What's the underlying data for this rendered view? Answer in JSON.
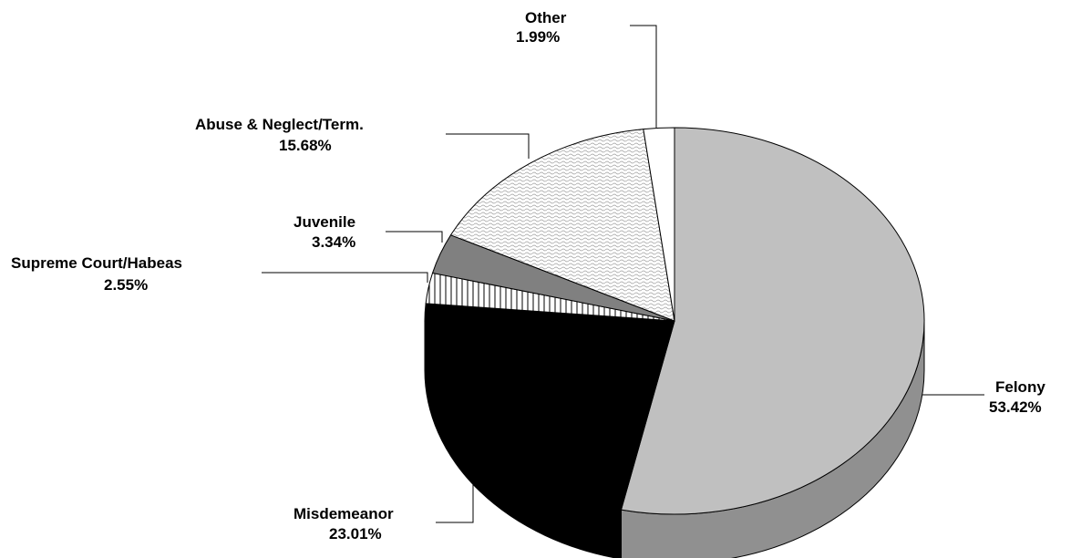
{
  "chart_data": {
    "type": "pie",
    "title": "",
    "slices": [
      {
        "label": "Felony",
        "value": 53.42,
        "value_label": "53.42%",
        "color": "#c0c0c0"
      },
      {
        "label": "Misdemeanor",
        "value": 23.01,
        "value_label": "23.01%",
        "color": "#000000"
      },
      {
        "label": "Supreme Court/Habeas",
        "value": 2.55,
        "value_label": "2.55%",
        "color": "#ffffff",
        "pattern": "vertical-lines"
      },
      {
        "label": "Juvenile",
        "value": 3.34,
        "value_label": "3.34%",
        "color": "#808080"
      },
      {
        "label": "Abuse & Neglect/Term.",
        "value": 15.68,
        "value_label": "15.68%",
        "color": "#eeeeee",
        "pattern": "wavy"
      },
      {
        "label": "Other",
        "value": 1.99,
        "value_label": "1.99%",
        "color": "#ffffff"
      }
    ],
    "style": "3d",
    "legend": "none"
  }
}
